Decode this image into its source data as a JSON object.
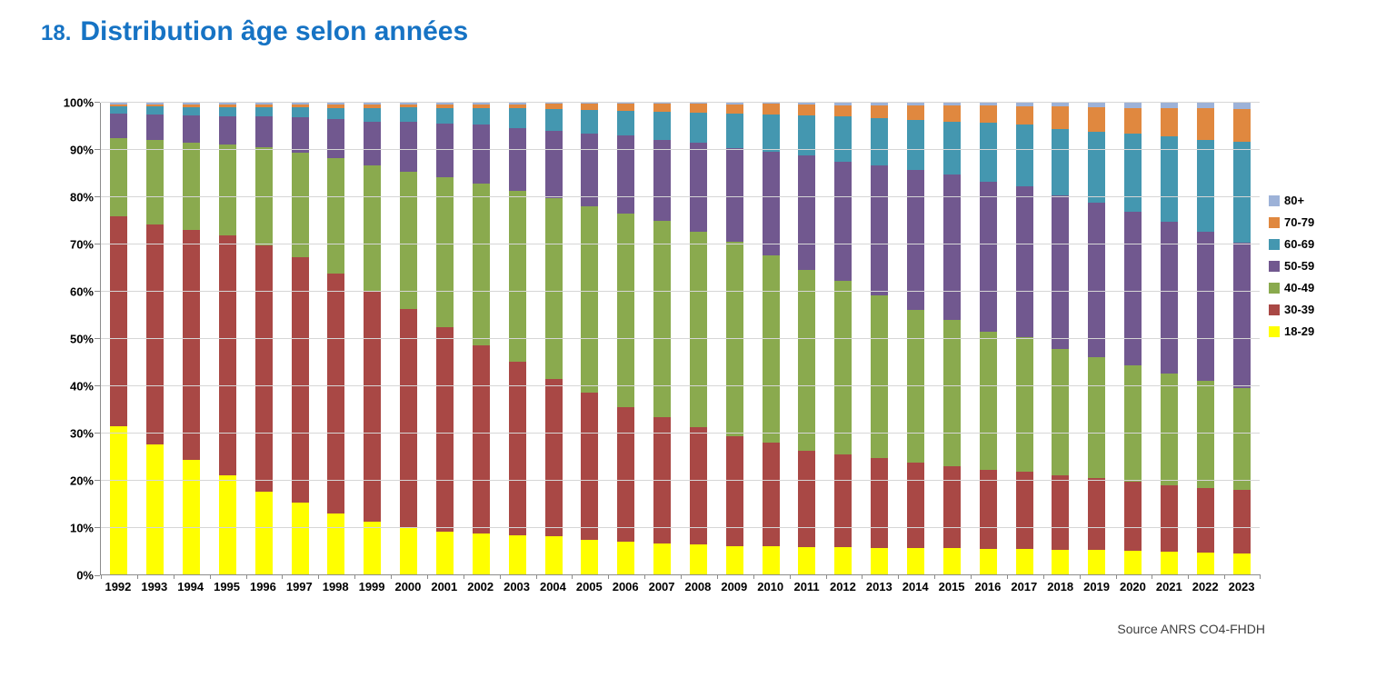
{
  "title": {
    "number": "18.",
    "text": "Distribution âge selon années",
    "color": "#1673C4"
  },
  "source": "Source ANRS CO4-FHDH",
  "chart_data": {
    "type": "bar",
    "stacked": true,
    "percent": true,
    "title": "Distribution âge selon années",
    "xlabel": "",
    "ylabel": "",
    "ylim": [
      0,
      100
    ],
    "yticks": [
      "0%",
      "10%",
      "20%",
      "30%",
      "40%",
      "50%",
      "60%",
      "70%",
      "80%",
      "90%",
      "100%"
    ],
    "grid": true,
    "legend_position": "right",
    "legend_order_top_to_bottom": [
      "80+",
      "70-79",
      "60-69",
      "50-59",
      "40-49",
      "30-39",
      "18-29"
    ],
    "categories": [
      1992,
      1993,
      1994,
      1995,
      1996,
      1997,
      1998,
      1999,
      2000,
      2001,
      2002,
      2003,
      2004,
      2005,
      2006,
      2007,
      2008,
      2009,
      2010,
      2011,
      2012,
      2013,
      2014,
      2015,
      2016,
      2017,
      2018,
      2019,
      2020,
      2021,
      2022,
      2023
    ],
    "series": [
      {
        "name": "18-29",
        "color": "#FFFF00",
        "values": [
          31.5,
          27.5,
          24.2,
          21.0,
          17.6,
          15.2,
          13.0,
          11.1,
          9.8,
          9.0,
          8.7,
          8.3,
          8.0,
          7.4,
          7.0,
          6.6,
          6.3,
          6.0,
          5.9,
          5.7,
          5.7,
          5.6,
          5.6,
          5.5,
          5.4,
          5.4,
          5.3,
          5.2,
          5.0,
          4.8,
          4.7,
          4.5
        ]
      },
      {
        "name": "30-39",
        "color": "#A94845",
        "values": [
          44.5,
          46.7,
          48.8,
          50.8,
          52.2,
          52.1,
          50.8,
          49.1,
          46.4,
          43.5,
          39.8,
          36.7,
          33.5,
          31.1,
          28.5,
          26.7,
          24.9,
          23.3,
          22.1,
          20.6,
          19.8,
          19.0,
          18.1,
          17.4,
          16.8,
          16.3,
          15.7,
          15.2,
          14.6,
          14.0,
          13.7,
          13.4
        ]
      },
      {
        "name": "40-49",
        "color": "#8AAA4E",
        "values": [
          16.4,
          17.9,
          18.6,
          19.4,
          20.7,
          22.2,
          24.5,
          26.6,
          29.1,
          31.7,
          34.4,
          36.4,
          38.3,
          39.6,
          41.0,
          41.6,
          41.4,
          41.2,
          39.6,
          38.2,
          36.7,
          34.5,
          32.4,
          31.1,
          29.3,
          28.6,
          26.7,
          25.6,
          24.7,
          23.8,
          22.6,
          21.6
        ]
      },
      {
        "name": "50-59",
        "color": "#71588F",
        "values": [
          5.3,
          5.4,
          5.7,
          6.0,
          6.6,
          7.5,
          8.2,
          9.1,
          10.6,
          11.3,
          12.4,
          13.3,
          14.3,
          15.3,
          16.6,
          17.3,
          19.0,
          19.9,
          22.0,
          24.3,
          25.3,
          27.6,
          29.7,
          30.7,
          31.7,
          31.9,
          32.6,
          32.8,
          32.6,
          32.2,
          31.7,
          30.8
        ]
      },
      {
        "name": "60-69",
        "color": "#4497B0",
        "values": [
          1.6,
          1.7,
          1.8,
          1.9,
          1.9,
          2.0,
          2.4,
          2.9,
          3.2,
          3.4,
          3.6,
          4.1,
          4.5,
          5.0,
          5.2,
          5.9,
          6.2,
          7.3,
          7.9,
          8.5,
          9.6,
          10.1,
          10.5,
          11.2,
          12.6,
          13.1,
          14.2,
          15.1,
          16.5,
          18.0,
          19.4,
          21.4
        ]
      },
      {
        "name": "70-79",
        "color": "#E0883F",
        "values": [
          0.4,
          0.4,
          0.5,
          0.5,
          0.6,
          0.6,
          0.7,
          0.8,
          0.6,
          0.7,
          0.8,
          0.8,
          1.2,
          1.4,
          1.5,
          1.7,
          2.0,
          2.0,
          2.3,
          2.3,
          2.4,
          2.7,
          3.2,
          3.5,
          3.6,
          3.9,
          4.7,
          5.2,
          5.5,
          6.1,
          6.7,
          6.9
        ]
      },
      {
        "name": "80+",
        "color": "#9DB2D8",
        "values": [
          0.3,
          0.4,
          0.4,
          0.4,
          0.4,
          0.4,
          0.4,
          0.4,
          0.3,
          0.4,
          0.3,
          0.4,
          0.2,
          0.2,
          0.2,
          0.2,
          0.2,
          0.3,
          0.2,
          0.4,
          0.5,
          0.5,
          0.5,
          0.6,
          0.6,
          0.8,
          0.8,
          0.9,
          1.1,
          1.1,
          1.2,
          1.4
        ]
      }
    ]
  }
}
